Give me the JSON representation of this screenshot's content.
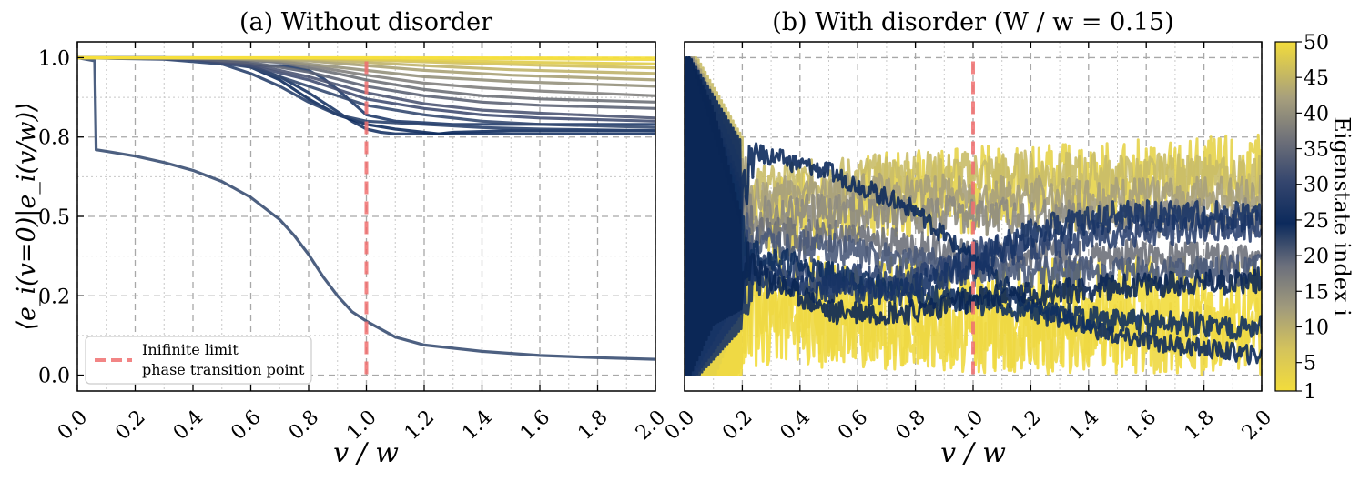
{
  "figure": {
    "colorbar": {
      "label": "Eigenstate index i",
      "ticks": [
        "1",
        "5",
        "10",
        "15",
        "20",
        "25",
        "30",
        "35",
        "40",
        "45",
        "50"
      ],
      "stops": [
        "#f2dc3c",
        "#b8b078",
        "#888888",
        "#4a5a7a",
        "#0c2a5c",
        "#404e74",
        "#858582",
        "#bcb378",
        "#f2dc3c"
      ]
    },
    "shared_ylabel": "⟨e_i(v=0)|e_i(v/w)⟩"
  },
  "chart_data": [
    {
      "type": "line",
      "title": "(a) Without disorder",
      "xlabel": "v / w",
      "ylabel": "⟨e_i(v=0)|e_i(v/w)⟩",
      "xlim": [
        0.0,
        2.0
      ],
      "ylim": [
        -0.05,
        1.05
      ],
      "x_ticks": [
        "0.0",
        "0.2",
        "0.4",
        "0.6",
        "0.8",
        "1.0",
        "1.2",
        "1.4",
        "1.6",
        "1.8",
        "2.0"
      ],
      "y_ticks": [
        "0.0",
        "0.2",
        "0.5",
        "0.8",
        "1.0"
      ],
      "y_tick_values": [
        0.0,
        0.25,
        0.5,
        0.75,
        1.0
      ],
      "vline": {
        "x": 1.0,
        "color": "#f07070",
        "label": "Inifinite limit phase transition point"
      },
      "legend": {
        "position": "lower-left",
        "entries": [
          "Inifinite limit",
          "phase transition point"
        ]
      },
      "series": [
        {
          "name": "i=26",
          "color": "#3a4f73",
          "x": [
            0.0,
            0.06,
            0.065,
            0.1,
            0.2,
            0.3,
            0.4,
            0.5,
            0.6,
            0.7,
            0.75,
            0.8,
            0.85,
            0.9,
            0.95,
            1.0,
            1.1,
            1.2,
            1.4,
            1.6,
            1.8,
            2.0
          ],
          "y": [
            1.0,
            0.99,
            0.71,
            0.705,
            0.69,
            0.67,
            0.645,
            0.61,
            0.56,
            0.49,
            0.44,
            0.38,
            0.31,
            0.25,
            0.2,
            0.17,
            0.12,
            0.095,
            0.075,
            0.062,
            0.055,
            0.05
          ]
        },
        {
          "name": "i=27",
          "color": "#1a3566",
          "x": [
            0.0,
            0.3,
            0.5,
            0.6,
            0.7,
            0.8,
            0.9,
            0.95,
            1.0,
            1.05,
            1.1,
            1.2,
            1.5,
            2.0
          ],
          "y": [
            1.0,
            1.0,
            0.99,
            0.975,
            0.94,
            0.89,
            0.83,
            0.8,
            0.775,
            0.765,
            0.76,
            0.76,
            0.76,
            0.76
          ]
        },
        {
          "name": "i=24",
          "color": "#203b6a",
          "x": [
            0.0,
            0.4,
            0.55,
            0.6,
            0.65,
            0.7,
            0.75,
            0.8,
            0.85,
            0.9,
            0.95,
            1.0,
            1.1,
            1.2,
            1.3,
            1.5,
            2.0
          ],
          "y": [
            1.0,
            1.0,
            0.99,
            0.98,
            0.975,
            0.975,
            0.97,
            0.96,
            0.935,
            0.9,
            0.86,
            0.82,
            0.8,
            0.795,
            0.79,
            0.79,
            0.79
          ]
        },
        {
          "name": "i=25",
          "color": "#102c5e",
          "x": [
            0.0,
            0.3,
            0.5,
            0.6,
            0.7,
            0.8,
            0.9,
            1.0,
            1.1,
            1.2,
            1.25,
            1.3,
            1.5,
            2.0
          ],
          "y": [
            1.0,
            1.0,
            0.99,
            0.97,
            0.93,
            0.87,
            0.82,
            0.79,
            0.775,
            0.765,
            0.76,
            0.765,
            0.77,
            0.77
          ]
        },
        {
          "name": "i=23",
          "color": "#2a426e",
          "x": [
            0.0,
            0.3,
            0.5,
            0.6,
            0.7,
            0.8,
            0.9,
            1.0,
            1.2,
            1.4,
            1.6,
            2.0
          ],
          "y": [
            1.0,
            0.995,
            0.98,
            0.95,
            0.91,
            0.86,
            0.82,
            0.8,
            0.79,
            0.78,
            0.775,
            0.77
          ]
        },
        {
          "name": "i=22",
          "color": "#354a71",
          "x": [
            0.0,
            0.4,
            0.6,
            0.8,
            1.0,
            1.2,
            1.4,
            1.6,
            2.0
          ],
          "y": [
            1.0,
            0.995,
            0.97,
            0.91,
            0.85,
            0.82,
            0.8,
            0.79,
            0.78
          ]
        },
        {
          "name": "i=21",
          "color": "#434f73",
          "x": [
            0.0,
            0.4,
            0.6,
            0.8,
            1.0,
            1.2,
            1.4,
            1.6,
            2.0
          ],
          "y": [
            1.0,
            0.995,
            0.975,
            0.93,
            0.87,
            0.84,
            0.82,
            0.81,
            0.8
          ]
        },
        {
          "name": "i=20",
          "color": "#4e5774",
          "x": [
            0.0,
            0.4,
            0.6,
            0.8,
            1.0,
            1.2,
            1.4,
            1.6,
            2.0
          ],
          "y": [
            1.0,
            0.997,
            0.98,
            0.94,
            0.89,
            0.855,
            0.835,
            0.825,
            0.81
          ]
        },
        {
          "name": "i=18",
          "color": "#5d6476",
          "x": [
            0.0,
            0.4,
            0.6,
            0.8,
            1.0,
            1.2,
            1.4,
            1.6,
            2.0
          ],
          "y": [
            1.0,
            0.997,
            0.985,
            0.955,
            0.91,
            0.88,
            0.86,
            0.85,
            0.84
          ]
        },
        {
          "name": "i=15",
          "color": "#6e7178",
          "x": [
            0.0,
            0.5,
            0.7,
            0.9,
            1.0,
            1.2,
            1.4,
            1.6,
            2.0
          ],
          "y": [
            1.0,
            0.997,
            0.985,
            0.95,
            0.93,
            0.9,
            0.88,
            0.87,
            0.86
          ]
        },
        {
          "name": "i=12",
          "color": "#82817e",
          "x": [
            0.0,
            0.5,
            0.7,
            0.9,
            1.0,
            1.2,
            1.4,
            1.6,
            2.0
          ],
          "y": [
            1.0,
            0.998,
            0.99,
            0.96,
            0.945,
            0.92,
            0.905,
            0.895,
            0.88
          ]
        },
        {
          "name": "i=10",
          "color": "#95917c",
          "x": [
            0.0,
            0.5,
            0.7,
            0.9,
            1.0,
            1.2,
            1.5,
            2.0
          ],
          "y": [
            1.0,
            0.998,
            0.99,
            0.97,
            0.96,
            0.94,
            0.925,
            0.91
          ]
        },
        {
          "name": "i=8",
          "color": "#a9a176",
          "x": [
            0.0,
            0.6,
            0.8,
            1.0,
            1.2,
            1.5,
            2.0
          ],
          "y": [
            1.0,
            0.998,
            0.99,
            0.975,
            0.96,
            0.945,
            0.93
          ]
        },
        {
          "name": "i=6",
          "color": "#bfb26c",
          "x": [
            0.0,
            0.6,
            0.8,
            1.0,
            1.2,
            1.5,
            2.0
          ],
          "y": [
            1.0,
            0.999,
            0.995,
            0.985,
            0.975,
            0.962,
            0.95
          ]
        },
        {
          "name": "i=4",
          "color": "#d0c05c",
          "x": [
            0.0,
            0.7,
            1.0,
            1.3,
            1.6,
            2.0
          ],
          "y": [
            1.0,
            0.999,
            0.993,
            0.984,
            0.976,
            0.968
          ]
        },
        {
          "name": "i=3",
          "color": "#dfcc4c",
          "x": [
            0.0,
            0.8,
            1.0,
            1.3,
            1.6,
            2.0
          ],
          "y": [
            1.0,
            0.999,
            0.996,
            0.99,
            0.985,
            0.98
          ]
        },
        {
          "name": "i=2",
          "color": "#eed843",
          "x": [
            0.0,
            1.0,
            1.5,
            2.0
          ],
          "y": [
            1.0,
            0.999,
            0.997,
            0.994
          ]
        },
        {
          "name": "i=1",
          "color": "#f6e03c",
          "x": [
            0.0,
            1.0,
            2.0
          ],
          "y": [
            1.0,
            1.0,
            0.999
          ]
        }
      ]
    },
    {
      "type": "line",
      "title": "(b) With disorder (W / w = 0.15)",
      "xlabel": "v / w",
      "xlim": [
        0.0,
        2.0
      ],
      "ylim": [
        -0.05,
        1.05
      ],
      "x_ticks": [
        "0.0",
        "0.2",
        "0.4",
        "0.6",
        "0.8",
        "1.0",
        "1.2",
        "1.4",
        "1.6",
        "1.8",
        "2.0"
      ],
      "vline": {
        "x": 1.0,
        "color": "#f07070"
      },
      "series": [
        {
          "name": "i=3",
          "color": "#f2dc3c",
          "mean_x": [
            0.0,
            0.2,
            0.5,
            1.0,
            1.5,
            2.0
          ],
          "mean_y": [
            0.3,
            0.2,
            0.2,
            0.2,
            0.2,
            0.2
          ],
          "noise": 0.18,
          "seed": 11
        },
        {
          "name": "i=47",
          "color": "#eed843",
          "mean_x": [
            0.0,
            0.2,
            0.5,
            1.0,
            1.5,
            2.0
          ],
          "mean_y": [
            0.3,
            0.25,
            0.15,
            0.12,
            0.12,
            0.12
          ],
          "noise": 0.12,
          "seed": 12
        },
        {
          "name": "i=44",
          "color": "#e6d34a",
          "mean_x": [
            0.0,
            0.2,
            0.5,
            1.0,
            1.5,
            2.0
          ],
          "mean_y": [
            0.4,
            0.45,
            0.55,
            0.58,
            0.6,
            0.62
          ],
          "noise": 0.14,
          "seed": 13
        },
        {
          "name": "i=40",
          "color": "#c9bc68",
          "mean_x": [
            0.0,
            0.2,
            0.5,
            1.0,
            1.5,
            2.0
          ],
          "mean_y": [
            0.5,
            0.58,
            0.62,
            0.64,
            0.63,
            0.62
          ],
          "noise": 0.07,
          "seed": 14
        },
        {
          "name": "i=37",
          "color": "#a7a07c",
          "mean_x": [
            0.0,
            0.2,
            0.5,
            1.0,
            1.5,
            2.0
          ],
          "mean_y": [
            0.5,
            0.55,
            0.58,
            0.57,
            0.56,
            0.57
          ],
          "noise": 0.06,
          "seed": 15
        },
        {
          "name": "i=34",
          "color": "#8d8b82",
          "mean_x": [
            0.0,
            0.2,
            0.5,
            1.0,
            1.5,
            2.0
          ],
          "mean_y": [
            0.5,
            0.5,
            0.52,
            0.5,
            0.49,
            0.5
          ],
          "noise": 0.06,
          "seed": 16
        },
        {
          "name": "i=14",
          "color": "#6e717a",
          "mean_x": [
            0.0,
            0.2,
            0.5,
            1.0,
            1.5,
            2.0
          ],
          "mean_y": [
            0.5,
            0.45,
            0.44,
            0.38,
            0.38,
            0.36
          ],
          "noise": 0.05,
          "seed": 17
        },
        {
          "name": "i=30",
          "color": "#4a5a7a",
          "mean_x": [
            0.0,
            0.2,
            0.5,
            1.0,
            1.5,
            2.0
          ],
          "mean_y": [
            0.5,
            0.42,
            0.4,
            0.33,
            0.32,
            0.33
          ],
          "noise": 0.05,
          "seed": 18
        },
        {
          "name": "i=20",
          "color": "#2c4370",
          "mean_x": [
            0.0,
            0.2,
            0.5,
            0.8,
            1.0,
            1.5,
            2.0
          ],
          "mean_y": [
            0.5,
            0.35,
            0.3,
            0.3,
            0.38,
            0.45,
            0.47
          ],
          "noise": 0.05,
          "seed": 19
        },
        {
          "name": "i=26",
          "color": "#0c2a5c",
          "mean_x": [
            0.0,
            0.2,
            0.25,
            0.5,
            0.8,
            1.0,
            1.2,
            1.5,
            2.0
          ],
          "mean_y": [
            0.5,
            0.6,
            0.7,
            0.64,
            0.52,
            0.36,
            0.22,
            0.12,
            0.06
          ],
          "noise": 0.03,
          "seed": 20
        },
        {
          "name": "i=25",
          "color": "#10305f",
          "mean_x": [
            0.0,
            0.2,
            0.5,
            0.8,
            1.0,
            1.2,
            1.5,
            2.0
          ],
          "mean_y": [
            0.5,
            0.4,
            0.32,
            0.25,
            0.23,
            0.2,
            0.17,
            0.15
          ],
          "noise": 0.04,
          "seed": 21
        },
        {
          "name": "i=24",
          "color": "#183466",
          "mean_x": [
            0.0,
            0.2,
            0.5,
            0.8,
            1.0,
            1.2,
            1.5,
            2.0
          ],
          "mean_y": [
            0.5,
            0.3,
            0.27,
            0.27,
            0.35,
            0.45,
            0.5,
            0.5
          ],
          "noise": 0.05,
          "seed": 22
        },
        {
          "name": "i=27",
          "color": "#0a2654",
          "mean_x": [
            0.0,
            0.05,
            0.1,
            0.2,
            0.5,
            0.8,
            1.0,
            1.5,
            2.0
          ],
          "mean_y": [
            0.5,
            0.5,
            0.5,
            0.35,
            0.2,
            0.2,
            0.24,
            0.28,
            0.3
          ],
          "noise": 0.04,
          "seed": 23
        }
      ]
    }
  ]
}
